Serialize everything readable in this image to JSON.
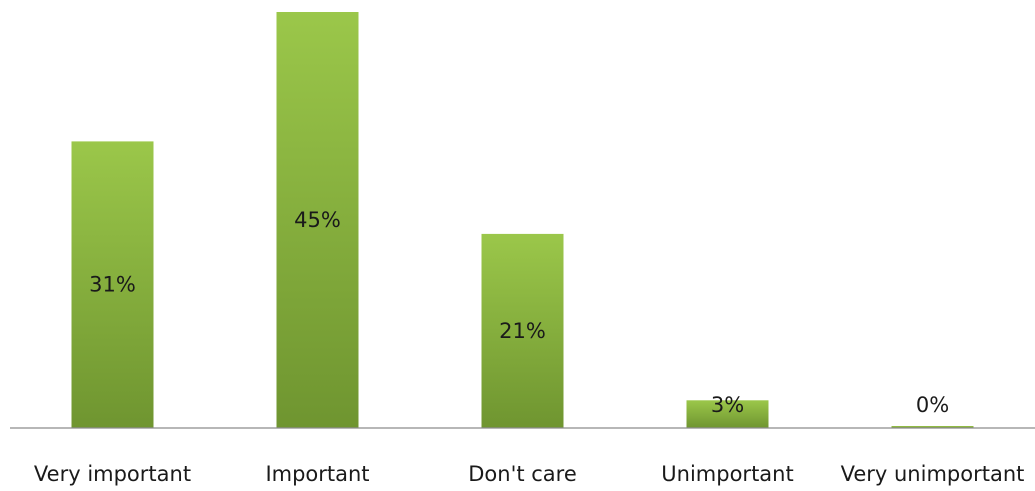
{
  "chart_data": {
    "type": "bar",
    "title": "",
    "xlabel": "",
    "ylabel": "",
    "categories": [
      "Very important",
      "Important",
      "Don't care",
      "Unimportant",
      "Very unimportant"
    ],
    "values": [
      31,
      45,
      21,
      3,
      0
    ],
    "data_labels": [
      "31%",
      "45%",
      "21%",
      "3%",
      "0%"
    ],
    "unit": "%",
    "ylim": [
      0,
      45
    ],
    "grid": false,
    "legend": "none",
    "bar_color_top": "#9bc74a",
    "bar_color_bottom": "#6f9530",
    "axis_color": "#8c8c8c"
  }
}
